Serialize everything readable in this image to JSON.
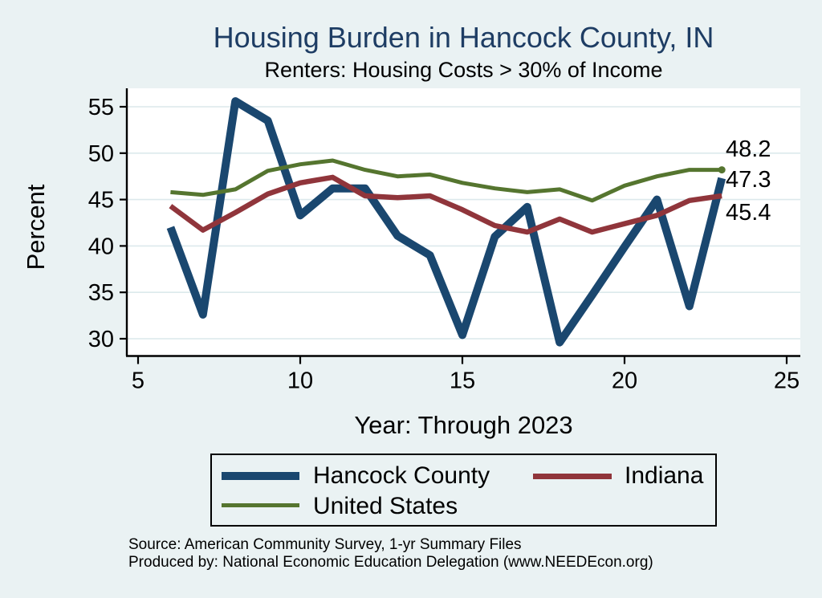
{
  "title": "Housing Burden in Hancock County, IN",
  "subtitle": "Renters: Housing Costs > 30% of Income",
  "x_title": "Year: Through 2023",
  "y_title": "Percent",
  "source": {
    "line1": "Source: American Community Survey, 1-yr Summary Files",
    "line2": "Produced by: National Economic Education Delegation (www.NEEDEcon.org)"
  },
  "colors": {
    "background": "#eaf2f3",
    "plot_background": "#ffffff",
    "gridline": "#dce9ec",
    "axis": "#000000",
    "title_text": "#1e3d64",
    "hancock": "#1a476f",
    "indiana": "#90353b",
    "united_states": "#55752f"
  },
  "chart_data": {
    "type": "line",
    "x": [
      6,
      7,
      8,
      9,
      10,
      11,
      12,
      13,
      14,
      15,
      16,
      17,
      18,
      19,
      20,
      21,
      22,
      23
    ],
    "x_axis_note": "x values are years 2006-2023 plotted as 6-23",
    "series": [
      {
        "name": "Hancock County",
        "color": "#1a476f",
        "line_width": 10,
        "end_label": "47.3",
        "end_marker": false,
        "values": [
          42.0,
          32.6,
          55.6,
          53.5,
          43.3,
          46.2,
          46.2,
          41.1,
          39.0,
          30.4,
          41.0,
          44.2,
          29.6,
          34.7,
          39.9,
          45.0,
          33.5,
          47.3
        ]
      },
      {
        "name": "Indiana",
        "color": "#90353b",
        "line_width": 6.5,
        "end_label": "45.4",
        "end_marker": false,
        "values": [
          44.3,
          41.7,
          43.6,
          45.6,
          46.8,
          47.4,
          45.4,
          45.2,
          45.4,
          43.9,
          42.2,
          41.5,
          42.9,
          41.5,
          42.4,
          43.3,
          44.9,
          45.4
        ]
      },
      {
        "name": "United States",
        "color": "#55752f",
        "line_width": 5,
        "end_label": "48.2",
        "end_marker": true,
        "values": [
          45.8,
          45.5,
          46.1,
          48.1,
          48.8,
          49.2,
          48.2,
          47.5,
          47.7,
          46.8,
          46.2,
          45.8,
          46.1,
          44.9,
          46.5,
          47.5,
          48.2,
          48.2
        ]
      }
    ],
    "x_ticks": [
      5,
      10,
      15,
      20,
      25
    ],
    "y_ticks": [
      30,
      35,
      40,
      45,
      50,
      55
    ],
    "xlim": [
      4.65,
      25.4
    ],
    "ylim": [
      28.2,
      57.0
    ],
    "grid": "horizontal",
    "legend_position": "bottom",
    "xlabel": "Year: Through 2023",
    "ylabel": "Percent",
    "title": "Housing Burden in Hancock County, IN",
    "subtitle": "Renters: Housing Costs > 30% of Income"
  }
}
